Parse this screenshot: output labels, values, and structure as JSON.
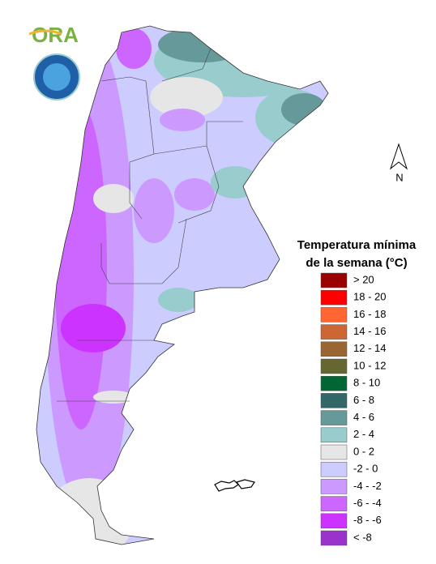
{
  "logo": {
    "text": "ORA"
  },
  "legend": {
    "title": [
      "Temperatura mínima",
      "de la semana (°C)"
    ],
    "items": [
      {
        "label": "> 20",
        "color": "#990000"
      },
      {
        "label": "18 - 20",
        "color": "#ff0000"
      },
      {
        "label": "16 - 18",
        "color": "#ff6633"
      },
      {
        "label": "14 - 16",
        "color": "#cc6633"
      },
      {
        "label": "12 - 14",
        "color": "#996633"
      },
      {
        "label": "10 - 12",
        "color": "#666633"
      },
      {
        "label": "8 - 10",
        "color": "#006633"
      },
      {
        "label": "6 - 8",
        "color": "#336666"
      },
      {
        "label": "4 - 6",
        "color": "#669999"
      },
      {
        "label": "2 - 4",
        "color": "#99cccc"
      },
      {
        "label": "0 - 2",
        "color": "#e6e6e6"
      },
      {
        "label": "-2 - 0",
        "color": "#ccccff"
      },
      {
        "label": "-4 - -2",
        "color": "#cc99ff"
      },
      {
        "label": "-6 - -4",
        "color": "#cc66ff"
      },
      {
        "label": "-8 - -6",
        "color": "#cc33ff"
      },
      {
        "label": "< -8",
        "color": "#9933cc"
      }
    ]
  },
  "compass": {
    "label": "N"
  }
}
